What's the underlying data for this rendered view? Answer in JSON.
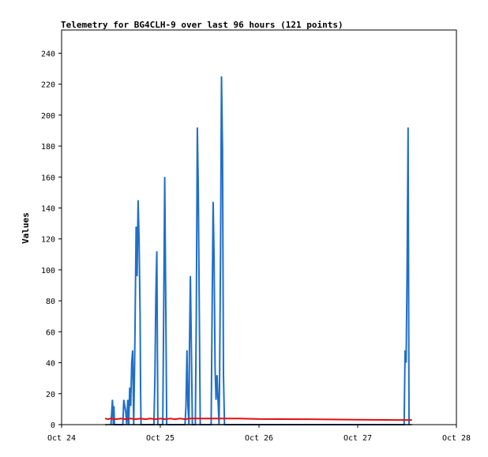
{
  "chart_data": {
    "type": "line",
    "title": "Telemetry for BG4CLH-9 over last 96 hours (121 points)",
    "xlabel": "",
    "ylabel": "Values",
    "x_tick_labels": [
      "Oct 24",
      "Oct 25",
      "Oct 26",
      "Oct 27",
      "Oct 28"
    ],
    "x_range_days": [
      0,
      4
    ],
    "ylim": [
      0,
      255
    ],
    "y_ticks": [
      0,
      20,
      40,
      60,
      80,
      100,
      120,
      140,
      160,
      180,
      200,
      220,
      240
    ],
    "grid": false,
    "legend": "none",
    "series": [
      {
        "color": "#1f6fc8",
        "points": [
          [
            0.5,
            0
          ],
          [
            0.515,
            16
          ],
          [
            0.525,
            0
          ],
          [
            0.53,
            12
          ],
          [
            0.535,
            0
          ],
          [
            0.62,
            0
          ],
          [
            0.63,
            16
          ],
          [
            0.64,
            12
          ],
          [
            0.65,
            8
          ],
          [
            0.66,
            0
          ],
          [
            0.67,
            16
          ],
          [
            0.68,
            0
          ],
          [
            0.69,
            24
          ],
          [
            0.7,
            12
          ],
          [
            0.71,
            40
          ],
          [
            0.72,
            48
          ],
          [
            0.73,
            0
          ],
          [
            0.74,
            40
          ],
          [
            0.755,
            128
          ],
          [
            0.765,
            96
          ],
          [
            0.775,
            145
          ],
          [
            0.785,
            120
          ],
          [
            0.795,
            72
          ],
          [
            0.8,
            24
          ],
          [
            0.805,
            0
          ],
          [
            0.935,
            0
          ],
          [
            0.945,
            28
          ],
          [
            0.955,
            84
          ],
          [
            0.965,
            112
          ],
          [
            0.975,
            0
          ],
          [
            1.025,
            0
          ],
          [
            1.035,
            80
          ],
          [
            1.045,
            160
          ],
          [
            1.055,
            80
          ],
          [
            1.065,
            0
          ],
          [
            1.25,
            0
          ],
          [
            1.26,
            12
          ],
          [
            1.27,
            48
          ],
          [
            1.28,
            12
          ],
          [
            1.29,
            0
          ],
          [
            1.295,
            48
          ],
          [
            1.305,
            96
          ],
          [
            1.315,
            48
          ],
          [
            1.325,
            0
          ],
          [
            1.355,
            0
          ],
          [
            1.365,
            72
          ],
          [
            1.375,
            192
          ],
          [
            1.385,
            152
          ],
          [
            1.395,
            72
          ],
          [
            1.405,
            0
          ],
          [
            1.425,
            0
          ],
          [
            1.515,
            0
          ],
          [
            1.525,
            72
          ],
          [
            1.535,
            144
          ],
          [
            1.545,
            108
          ],
          [
            1.555,
            36
          ],
          [
            1.565,
            16
          ],
          [
            1.575,
            32
          ],
          [
            1.585,
            16
          ],
          [
            1.595,
            0
          ],
          [
            1.6,
            24
          ],
          [
            1.61,
            112
          ],
          [
            1.62,
            225
          ],
          [
            1.63,
            176
          ],
          [
            1.64,
            32
          ],
          [
            1.65,
            0
          ],
          [
            3.47,
            0
          ],
          [
            3.48,
            48
          ],
          [
            3.49,
            40
          ],
          [
            3.5,
            96
          ],
          [
            3.51,
            192
          ],
          [
            3.515,
            96
          ],
          [
            3.52,
            0
          ]
        ]
      },
      {
        "color": "#e01010",
        "points": [
          [
            0.44,
            4
          ],
          [
            0.47,
            3.5
          ],
          [
            0.5,
            4
          ],
          [
            0.55,
            3.5
          ],
          [
            0.6,
            4
          ],
          [
            0.65,
            3.5
          ],
          [
            0.7,
            4
          ],
          [
            0.75,
            3.5
          ],
          [
            0.8,
            4
          ],
          [
            0.85,
            3.5
          ],
          [
            0.9,
            4
          ],
          [
            0.95,
            3.5
          ],
          [
            1.0,
            4
          ],
          [
            1.05,
            3.5
          ],
          [
            1.1,
            4
          ],
          [
            1.15,
            3.5
          ],
          [
            1.2,
            4
          ],
          [
            1.25,
            3.5
          ],
          [
            1.3,
            4
          ],
          [
            1.4,
            4
          ],
          [
            1.5,
            4
          ],
          [
            1.6,
            4
          ],
          [
            1.7,
            4
          ],
          [
            1.8,
            4
          ],
          [
            2.0,
            3.6
          ],
          [
            2.5,
            3.5
          ],
          [
            3.0,
            3.2
          ],
          [
            3.4,
            3
          ],
          [
            3.55,
            3
          ]
        ]
      },
      {
        "color": "#000000",
        "points": [
          [
            0.44,
            0
          ],
          [
            3.55,
            0
          ]
        ]
      }
    ]
  }
}
